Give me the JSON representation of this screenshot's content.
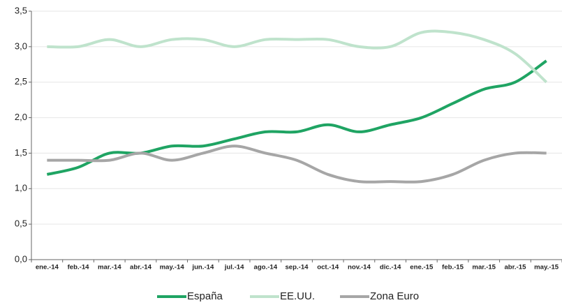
{
  "chart_data": {
    "type": "line",
    "categories": [
      "ene.-14",
      "feb.-14",
      "mar.-14",
      "abr.-14",
      "may.-14",
      "jun.-14",
      "jul.-14",
      "ago.-14",
      "sep.-14",
      "oct.-14",
      "nov.-14",
      "dic.-14",
      "ene.-15",
      "feb.-15",
      "mar.-15",
      "abr.-15",
      "may.-15"
    ],
    "series": [
      {
        "name": "España",
        "color": "#1fa463",
        "values": [
          1.2,
          1.3,
          1.5,
          1.5,
          1.6,
          1.6,
          1.7,
          1.8,
          1.8,
          1.9,
          1.8,
          1.9,
          2.0,
          2.2,
          2.4,
          2.5,
          2.8
        ]
      },
      {
        "name": "EE.UU.",
        "color": "#bfe3cc",
        "values": [
          3.0,
          3.0,
          3.1,
          3.0,
          3.1,
          3.1,
          3.0,
          3.1,
          3.1,
          3.1,
          3.0,
          3.0,
          3.2,
          3.2,
          3.1,
          2.9,
          2.5
        ]
      },
      {
        "name": "Zona Euro",
        "color": "#a6a6a6",
        "values": [
          1.4,
          1.4,
          1.4,
          1.5,
          1.4,
          1.5,
          1.6,
          1.5,
          1.4,
          1.2,
          1.1,
          1.1,
          1.1,
          1.2,
          1.4,
          1.5,
          1.5
        ]
      }
    ],
    "ylim": [
      0,
      3.5
    ],
    "yticks": [
      {
        "value": 0,
        "label": "0,0"
      },
      {
        "value": 0.5,
        "label": "0,5"
      },
      {
        "value": 1,
        "label": "1,0"
      },
      {
        "value": 1.5,
        "label": "1,5"
      },
      {
        "value": 2,
        "label": "2,0"
      },
      {
        "value": 2.5,
        "label": "2,5"
      },
      {
        "value": 3,
        "label": "3,0"
      },
      {
        "value": 3.5,
        "label": "3,5"
      }
    ],
    "grid": true,
    "legend": "bottom"
  }
}
